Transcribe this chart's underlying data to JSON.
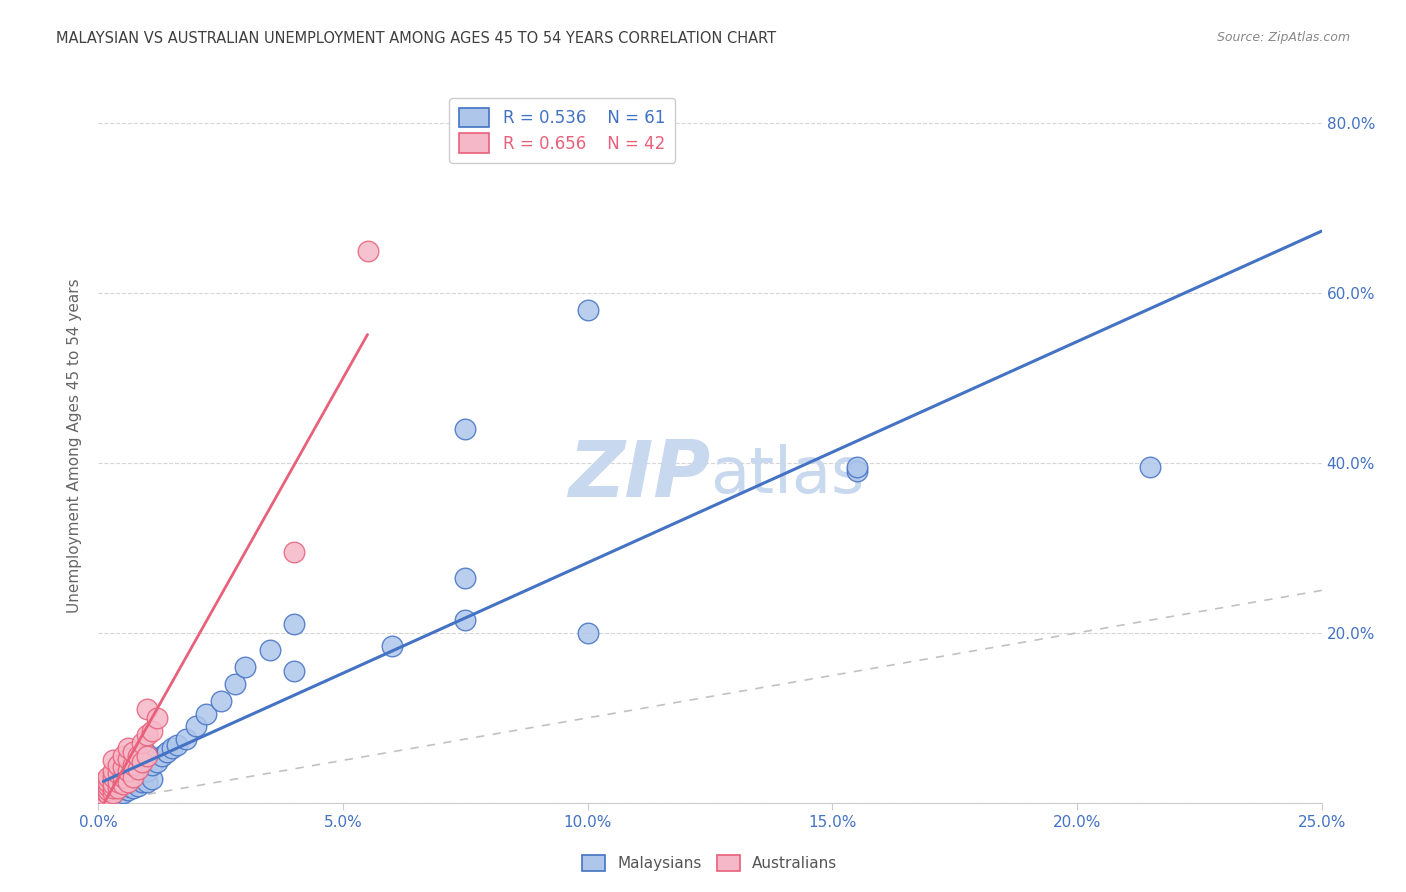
{
  "title": "MALAYSIAN VS AUSTRALIAN UNEMPLOYMENT AMONG AGES 45 TO 54 YEARS CORRELATION CHART",
  "source": "Source: ZipAtlas.com",
  "ylabel": "Unemployment Among Ages 45 to 54 years",
  "xlim": [
    0.0,
    0.25
  ],
  "ylim": [
    0.0,
    0.84
  ],
  "xticks": [
    0.0,
    0.05,
    0.1,
    0.15,
    0.2,
    0.25
  ],
  "xticklabels": [
    "0.0%",
    "5.0%",
    "10.0%",
    "15.0%",
    "20.0%",
    "25.0%"
  ],
  "yticks": [
    0.0,
    0.2,
    0.4,
    0.6,
    0.8
  ],
  "yticklabels_right": [
    "",
    "20.0%",
    "40.0%",
    "60.0%",
    "80.0%"
  ],
  "legend_r_blue": "R = 0.536",
  "legend_n_blue": "N = 61",
  "legend_r_pink": "R = 0.656",
  "legend_n_pink": "N = 42",
  "blue_fill": "#aec6ea",
  "pink_fill": "#f5b8c8",
  "blue_edge": "#4472c4",
  "pink_edge": "#e8607a",
  "blue_line": "#4472c4",
  "pink_line": "#e8607a",
  "axis_tick_color": "#4472c4",
  "title_color": "#404040",
  "source_color": "#888888",
  "grid_color": "#cccccc",
  "diag_color": "#bbbbbb",
  "watermark_zip": "ZIP",
  "watermark_atlas": "atlas",
  "watermark_color_zip": "#c8d8ee",
  "watermark_color_atlas": "#c8d8ee",
  "legend_label_blue": "Malaysians",
  "legend_label_pink": "Australians",
  "malaysians_x": [
    0.001,
    0.001,
    0.001,
    0.001,
    0.002,
    0.002,
    0.002,
    0.002,
    0.002,
    0.002,
    0.002,
    0.003,
    0.003,
    0.003,
    0.003,
    0.003,
    0.004,
    0.004,
    0.004,
    0.004,
    0.004,
    0.004,
    0.005,
    0.005,
    0.005,
    0.005,
    0.005,
    0.006,
    0.006,
    0.006,
    0.006,
    0.007,
    0.007,
    0.007,
    0.008,
    0.008,
    0.008,
    0.009,
    0.009,
    0.01,
    0.01,
    0.011,
    0.011,
    0.012,
    0.013,
    0.014,
    0.015,
    0.016,
    0.018,
    0.02,
    0.022,
    0.025,
    0.028,
    0.03,
    0.035,
    0.04,
    0.06,
    0.075,
    0.1,
    0.155,
    0.215
  ],
  "malaysians_y": [
    0.005,
    0.01,
    0.015,
    0.02,
    0.005,
    0.008,
    0.01,
    0.015,
    0.018,
    0.022,
    0.025,
    0.008,
    0.01,
    0.015,
    0.02,
    0.025,
    0.01,
    0.015,
    0.018,
    0.022,
    0.025,
    0.03,
    0.012,
    0.018,
    0.022,
    0.028,
    0.035,
    0.015,
    0.02,
    0.025,
    0.03,
    0.018,
    0.025,
    0.032,
    0.02,
    0.028,
    0.038,
    0.025,
    0.035,
    0.025,
    0.038,
    0.028,
    0.045,
    0.048,
    0.055,
    0.06,
    0.065,
    0.068,
    0.075,
    0.09,
    0.105,
    0.12,
    0.14,
    0.16,
    0.18,
    0.21,
    0.185,
    0.215,
    0.2,
    0.39,
    0.395
  ],
  "malaysians_y_extra": [
    0.058,
    0.155,
    0.265,
    0.44,
    0.58,
    0.395
  ],
  "malaysians_x_extra": [
    0.01,
    0.04,
    0.075,
    0.075,
    0.1,
    0.155
  ],
  "australians_x": [
    0.001,
    0.001,
    0.001,
    0.001,
    0.001,
    0.002,
    0.002,
    0.002,
    0.002,
    0.002,
    0.003,
    0.003,
    0.003,
    0.003,
    0.003,
    0.003,
    0.004,
    0.004,
    0.004,
    0.004,
    0.005,
    0.005,
    0.005,
    0.005,
    0.006,
    0.006,
    0.006,
    0.006,
    0.007,
    0.007,
    0.007,
    0.008,
    0.008,
    0.009,
    0.009,
    0.01,
    0.01,
    0.01,
    0.011,
    0.012,
    0.04,
    0.055
  ],
  "australians_y": [
    0.005,
    0.01,
    0.015,
    0.02,
    0.025,
    0.01,
    0.015,
    0.02,
    0.025,
    0.03,
    0.012,
    0.018,
    0.022,
    0.03,
    0.038,
    0.05,
    0.018,
    0.025,
    0.035,
    0.045,
    0.022,
    0.03,
    0.042,
    0.055,
    0.025,
    0.038,
    0.052,
    0.065,
    0.03,
    0.045,
    0.06,
    0.04,
    0.055,
    0.048,
    0.07,
    0.055,
    0.08,
    0.11,
    0.085,
    0.1,
    0.295,
    0.65
  ]
}
